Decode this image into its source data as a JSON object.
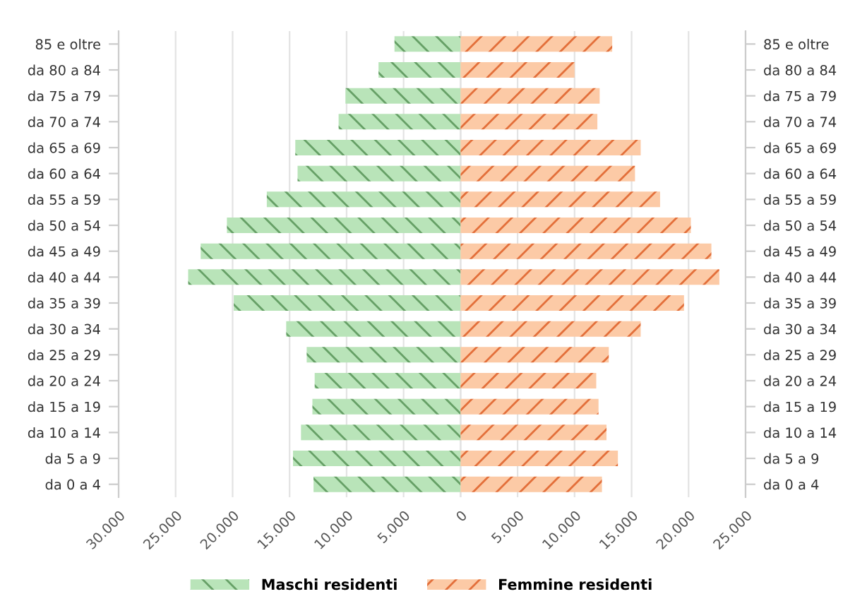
{
  "chart_data": {
    "type": "bar",
    "orientation": "horizontal",
    "categories": [
      "85 e oltre",
      "da 80 a 84",
      "da 75 a 79",
      "da 70 a 74",
      "da 65 a 69",
      "da 60 a 64",
      "da 55 a 59",
      "da 50 a 54",
      "da 45 a 49",
      "da 40 a 44",
      "da 35 a 39",
      "da 30 a 34",
      "da 25 a 29",
      "da 20 a 24",
      "da 15 a 19",
      "da 10 a 14",
      "da 5 a 9",
      "da 0 a 4"
    ],
    "series": [
      {
        "name": "Maschi residenti",
        "color": "#b9e4b9",
        "values": [
          -5800,
          -7200,
          -10100,
          -10700,
          -14500,
          -14300,
          -17000,
          -20500,
          -22800,
          -23900,
          -19900,
          -15300,
          -13500,
          -12800,
          -13000,
          -14000,
          -14700,
          -12900
        ]
      },
      {
        "name": "Femmine residenti",
        "color": "#fccaa6",
        "values": [
          13300,
          10000,
          12200,
          12000,
          15800,
          15300,
          17500,
          20200,
          22000,
          22700,
          19600,
          15800,
          13000,
          11900,
          12100,
          12800,
          13800,
          12400
        ]
      }
    ],
    "xlim": [
      -30000,
      25000
    ],
    "xticks": [
      {
        "value": -30000,
        "label": "30.000"
      },
      {
        "value": -25000,
        "label": "25.000"
      },
      {
        "value": -20000,
        "label": "20.000"
      },
      {
        "value": -15000,
        "label": "15.000"
      },
      {
        "value": -10000,
        "label": "10.000"
      },
      {
        "value": -5000,
        "label": "5.000"
      },
      0,
      {
        "value": 5000,
        "label": "5.000"
      },
      {
        "value": 10000,
        "label": "10.000"
      },
      {
        "value": 15000,
        "label": "15.000"
      },
      {
        "value": 20000,
        "label": "20.000"
      },
      {
        "value": 25000,
        "label": "25.000"
      }
    ],
    "stacked": true,
    "grid": "x",
    "legend": "bottom"
  }
}
